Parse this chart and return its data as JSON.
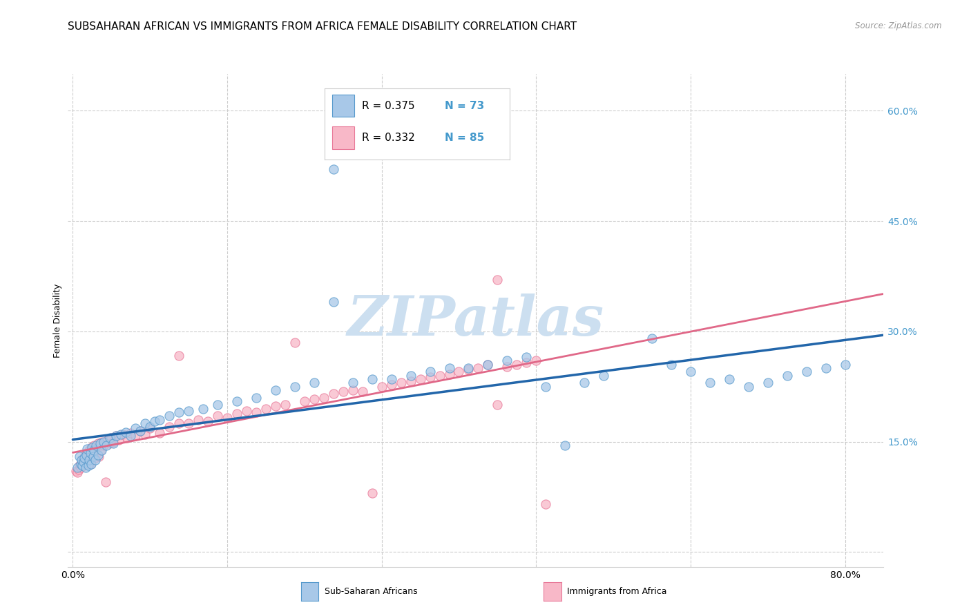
{
  "title": "SUBSAHARAN AFRICAN VS IMMIGRANTS FROM AFRICA FEMALE DISABILITY CORRELATION CHART",
  "source": "Source: ZipAtlas.com",
  "ylabel": "Female Disability",
  "x_tick_vals": [
    0.0,
    0.16,
    0.32,
    0.48,
    0.64,
    0.8
  ],
  "x_tick_labels": [
    "0.0%",
    "",
    "",
    "",
    "",
    "80.0%"
  ],
  "y_ticks": [
    0.0,
    0.15,
    0.3,
    0.45,
    0.6
  ],
  "y_tick_labels_right": [
    "",
    "15.0%",
    "30.0%",
    "45.0%",
    "60.0%"
  ],
  "xlim": [
    -0.005,
    0.84
  ],
  "ylim": [
    -0.02,
    0.65
  ],
  "legend_r1": "R = 0.375",
  "legend_n1": "N = 73",
  "legend_r2": "R = 0.332",
  "legend_n2": "N = 85",
  "color_blue_fill": "#a8c8e8",
  "color_blue_edge": "#5599cc",
  "color_blue_line": "#2266aa",
  "color_pink_fill": "#f8b8c8",
  "color_pink_edge": "#e87898",
  "color_pink_line": "#e06888",
  "color_text_blue": "#4499cc",
  "color_watermark": "#ccdff0",
  "color_grid": "#cccccc",
  "title_fontsize": 11,
  "axis_label_fontsize": 9,
  "tick_fontsize": 10,
  "legend_fontsize": 11,
  "blue_x": [
    0.005,
    0.007,
    0.008,
    0.009,
    0.01,
    0.011,
    0.012,
    0.013,
    0.014,
    0.015,
    0.016,
    0.017,
    0.018,
    0.019,
    0.02,
    0.021,
    0.022,
    0.023,
    0.024,
    0.026,
    0.028,
    0.03,
    0.032,
    0.035,
    0.038,
    0.042,
    0.045,
    0.05,
    0.055,
    0.06,
    0.065,
    0.07,
    0.075,
    0.08,
    0.085,
    0.09,
    0.1,
    0.11,
    0.12,
    0.135,
    0.15,
    0.17,
    0.19,
    0.21,
    0.23,
    0.25,
    0.27,
    0.29,
    0.31,
    0.33,
    0.35,
    0.37,
    0.39,
    0.41,
    0.43,
    0.45,
    0.47,
    0.49,
    0.51,
    0.53,
    0.55,
    0.6,
    0.62,
    0.64,
    0.66,
    0.68,
    0.7,
    0.72,
    0.74,
    0.76,
    0.78,
    0.8,
    0.27
  ],
  "blue_y": [
    0.115,
    0.13,
    0.12,
    0.125,
    0.118,
    0.122,
    0.128,
    0.115,
    0.132,
    0.14,
    0.118,
    0.125,
    0.135,
    0.12,
    0.142,
    0.13,
    0.138,
    0.125,
    0.145,
    0.132,
    0.148,
    0.138,
    0.15,
    0.145,
    0.155,
    0.148,
    0.158,
    0.16,
    0.163,
    0.158,
    0.168,
    0.165,
    0.175,
    0.17,
    0.178,
    0.18,
    0.185,
    0.19,
    0.192,
    0.195,
    0.2,
    0.205,
    0.21,
    0.22,
    0.225,
    0.23,
    0.34,
    0.23,
    0.235,
    0.235,
    0.24,
    0.245,
    0.25,
    0.25,
    0.255,
    0.26,
    0.265,
    0.225,
    0.145,
    0.23,
    0.24,
    0.29,
    0.255,
    0.245,
    0.23,
    0.235,
    0.225,
    0.23,
    0.24,
    0.245,
    0.25,
    0.255,
    0.52
  ],
  "pink_x": [
    0.003,
    0.005,
    0.006,
    0.007,
    0.008,
    0.009,
    0.01,
    0.011,
    0.012,
    0.013,
    0.014,
    0.015,
    0.016,
    0.017,
    0.018,
    0.019,
    0.02,
    0.021,
    0.022,
    0.023,
    0.024,
    0.025,
    0.026,
    0.027,
    0.028,
    0.029,
    0.03,
    0.032,
    0.034,
    0.036,
    0.038,
    0.04,
    0.042,
    0.045,
    0.048,
    0.052,
    0.056,
    0.06,
    0.065,
    0.07,
    0.075,
    0.08,
    0.09,
    0.1,
    0.11,
    0.12,
    0.13,
    0.14,
    0.15,
    0.16,
    0.17,
    0.18,
    0.19,
    0.2,
    0.21,
    0.22,
    0.23,
    0.24,
    0.25,
    0.26,
    0.27,
    0.28,
    0.29,
    0.3,
    0.31,
    0.32,
    0.33,
    0.34,
    0.35,
    0.36,
    0.37,
    0.38,
    0.39,
    0.4,
    0.41,
    0.42,
    0.43,
    0.44,
    0.45,
    0.46,
    0.47,
    0.48,
    0.49,
    0.44,
    0.11
  ],
  "pink_y": [
    0.11,
    0.108,
    0.112,
    0.118,
    0.115,
    0.12,
    0.125,
    0.118,
    0.13,
    0.122,
    0.135,
    0.128,
    0.125,
    0.138,
    0.12,
    0.142,
    0.132,
    0.138,
    0.145,
    0.128,
    0.14,
    0.135,
    0.148,
    0.13,
    0.145,
    0.138,
    0.15,
    0.145,
    0.095,
    0.152,
    0.148,
    0.155,
    0.15,
    0.158,
    0.152,
    0.16,
    0.155,
    0.162,
    0.158,
    0.165,
    0.16,
    0.168,
    0.162,
    0.17,
    0.175,
    0.175,
    0.18,
    0.178,
    0.185,
    0.182,
    0.188,
    0.192,
    0.19,
    0.195,
    0.198,
    0.2,
    0.285,
    0.205,
    0.208,
    0.21,
    0.215,
    0.218,
    0.22,
    0.218,
    0.08,
    0.225,
    0.228,
    0.23,
    0.232,
    0.235,
    0.238,
    0.24,
    0.242,
    0.245,
    0.248,
    0.25,
    0.255,
    0.37,
    0.252,
    0.255,
    0.258,
    0.26,
    0.065,
    0.2,
    0.267
  ]
}
